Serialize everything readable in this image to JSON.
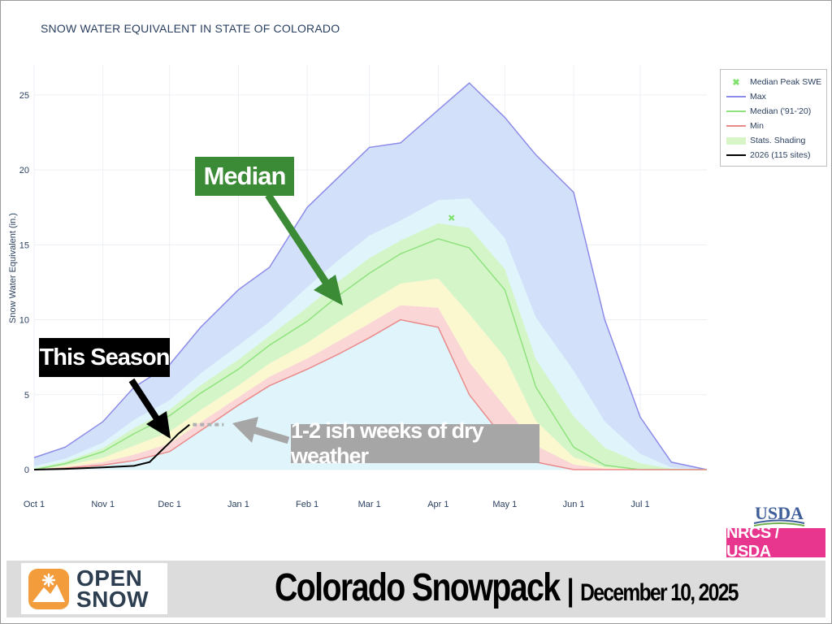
{
  "chart_data": {
    "type": "area",
    "title": "SNOW WATER EQUIVALENT IN STATE OF COLORADO",
    "ylabel": "Snow Water Equivalent (in.)",
    "xlabel": "",
    "x_tick_labels": [
      "Oct 1",
      "Nov 1",
      "Dec 1",
      "Jan 1",
      "Feb 1",
      "Mar 1",
      "Apr 1",
      "May 1",
      "Jun 1",
      "Jul 1"
    ],
    "y_tick_labels": [
      "0",
      "5",
      "10",
      "15",
      "20",
      "25"
    ],
    "ylim": [
      0,
      27
    ],
    "grid": true,
    "legend_position": "right",
    "legend": [
      "Median Peak SWE",
      "Max",
      "Median ('91-'20)",
      "Min",
      "Stats. Shading",
      "2026 (115 sites)"
    ],
    "x": [
      "Oct 1",
      "Oct 15",
      "Nov 1",
      "Nov 15",
      "Dec 1",
      "Dec 15",
      "Jan 1",
      "Jan 15",
      "Feb 1",
      "Feb 15",
      "Mar 1",
      "Mar 15",
      "Apr 1",
      "Apr 15",
      "May 1",
      "May 15",
      "Jun 1",
      "Jun 15",
      "Jul 1",
      "Jul 15",
      "Jul 31"
    ],
    "series": [
      {
        "name": "Max",
        "color": "#8d8be8",
        "values": [
          0.8,
          1.5,
          3.2,
          5.5,
          7.0,
          9.5,
          12.0,
          13.5,
          17.5,
          19.5,
          21.5,
          21.8,
          24.0,
          25.8,
          23.5,
          21.0,
          18.5,
          10.0,
          3.5,
          0.5,
          0.0
        ]
      },
      {
        "name": "Median ('91-'20)",
        "color": "#8fe27e",
        "values": [
          0.0,
          0.4,
          1.2,
          2.4,
          3.6,
          5.1,
          6.7,
          8.3,
          9.9,
          11.6,
          13.1,
          14.4,
          15.4,
          14.8,
          12.0,
          5.5,
          1.5,
          0.3,
          0.0,
          0.0,
          0.0
        ]
      },
      {
        "name": "Min",
        "color": "#e98b8b",
        "values": [
          0.0,
          0.1,
          0.3,
          0.6,
          1.2,
          2.6,
          4.3,
          5.6,
          6.7,
          7.7,
          8.8,
          10.0,
          9.5,
          5.0,
          2.0,
          0.5,
          0.0,
          0.0,
          0.0,
          0.0,
          0.0
        ]
      },
      {
        "name": "2026 (115 sites)",
        "color": "#000000",
        "x": [
          "Oct 1",
          "Oct 15",
          "Nov 1",
          "Nov 15",
          "Nov 22",
          "Dec 1",
          "Dec 5",
          "Dec 10"
        ],
        "values": [
          0.0,
          0.05,
          0.15,
          0.25,
          0.5,
          1.8,
          2.4,
          3.0
        ]
      }
    ],
    "median_peak_swe": {
      "x": "Apr 7",
      "y": 16.8,
      "color": "#7ee06a"
    },
    "annotations": [
      "Median",
      "This Season",
      "1-2 ish weeks of dry weather"
    ]
  },
  "callouts": {
    "median": "Median",
    "this_season": "This Season",
    "dry_weather": "1-2 ish weeks of dry weather"
  },
  "branding": {
    "usda_logo": "USDA",
    "nrcs_badge": "NRCS / USDA",
    "brand_line1": "OPEN",
    "brand_line2": "SNOW",
    "footer_title": "Colorado Snowpack",
    "footer_separator": "|",
    "footer_date": "December 10, 2025"
  },
  "colors": {
    "max_fill": "#d3e0fa",
    "band_cyan": "#dff5fb",
    "band_green": "#d4f5c8",
    "band_yellow": "#fbf7cf",
    "band_red": "#fbd6d6",
    "brand_orange": "#f39c3c",
    "nrcs_pink": "#e8368f",
    "callout_median": "#3b8a35",
    "callout_gray": "#a6a6a6"
  }
}
